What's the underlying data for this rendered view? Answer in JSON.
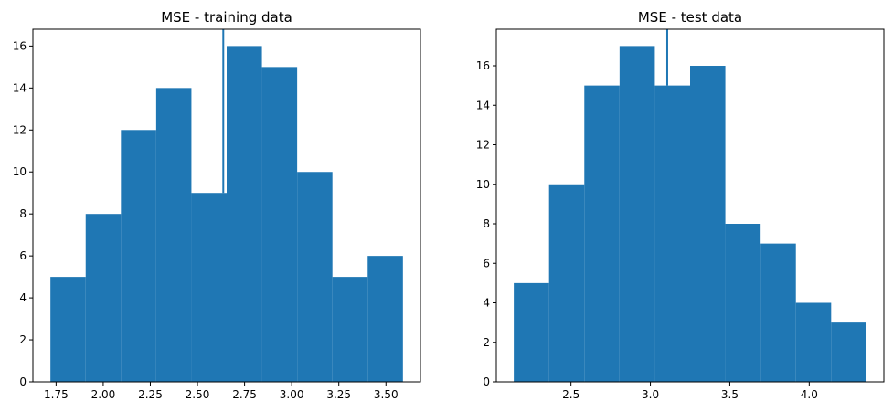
{
  "chart_data": [
    {
      "type": "bar",
      "subtype": "histogram",
      "title": "MSE - training data",
      "xlabel": "",
      "ylabel": "",
      "xlim": [
        1.627,
        3.683
      ],
      "ylim": [
        0,
        16.8
      ],
      "bin_edges": [
        1.72,
        1.907,
        2.094,
        2.281,
        2.468,
        2.655,
        2.842,
        3.029,
        3.216,
        3.403,
        3.59
      ],
      "counts": [
        5,
        8,
        12,
        14,
        9,
        16,
        15,
        10,
        5,
        6
      ],
      "vline_x": 2.637,
      "xticks": [
        1.75,
        2.0,
        2.25,
        2.5,
        2.75,
        3.0,
        3.25,
        3.5
      ],
      "xtick_labels": [
        "1.75",
        "2.00",
        "2.25",
        "2.50",
        "2.75",
        "3.00",
        "3.25",
        "3.50"
      ],
      "yticks": [
        0,
        2,
        4,
        6,
        8,
        10,
        12,
        14,
        16
      ],
      "ytick_labels": [
        "0",
        "2",
        "4",
        "6",
        "8",
        "10",
        "12",
        "14",
        "16"
      ],
      "grid": false,
      "color": "#1f77b4"
    },
    {
      "type": "bar",
      "subtype": "histogram",
      "title": "MSE - test data",
      "xlabel": "",
      "ylabel": "",
      "xlim": [
        2.03,
        4.47
      ],
      "ylim": [
        0,
        17.85
      ],
      "bin_edges": [
        2.14,
        2.362,
        2.584,
        2.806,
        3.028,
        3.25,
        3.472,
        3.694,
        3.916,
        4.138,
        4.36
      ],
      "counts": [
        5,
        10,
        15,
        17,
        15,
        16,
        8,
        7,
        4,
        3
      ],
      "vline_x": 3.106,
      "xticks": [
        2.5,
        3.0,
        3.5,
        4.0
      ],
      "xtick_labels": [
        "2.5",
        "3.0",
        "3.5",
        "4.0"
      ],
      "yticks": [
        0,
        2,
        4,
        6,
        8,
        10,
        12,
        14,
        16
      ],
      "ytick_labels": [
        "0",
        "2",
        "4",
        "6",
        "8",
        "10",
        "12",
        "14",
        "16"
      ],
      "grid": false,
      "color": "#1f77b4"
    }
  ]
}
